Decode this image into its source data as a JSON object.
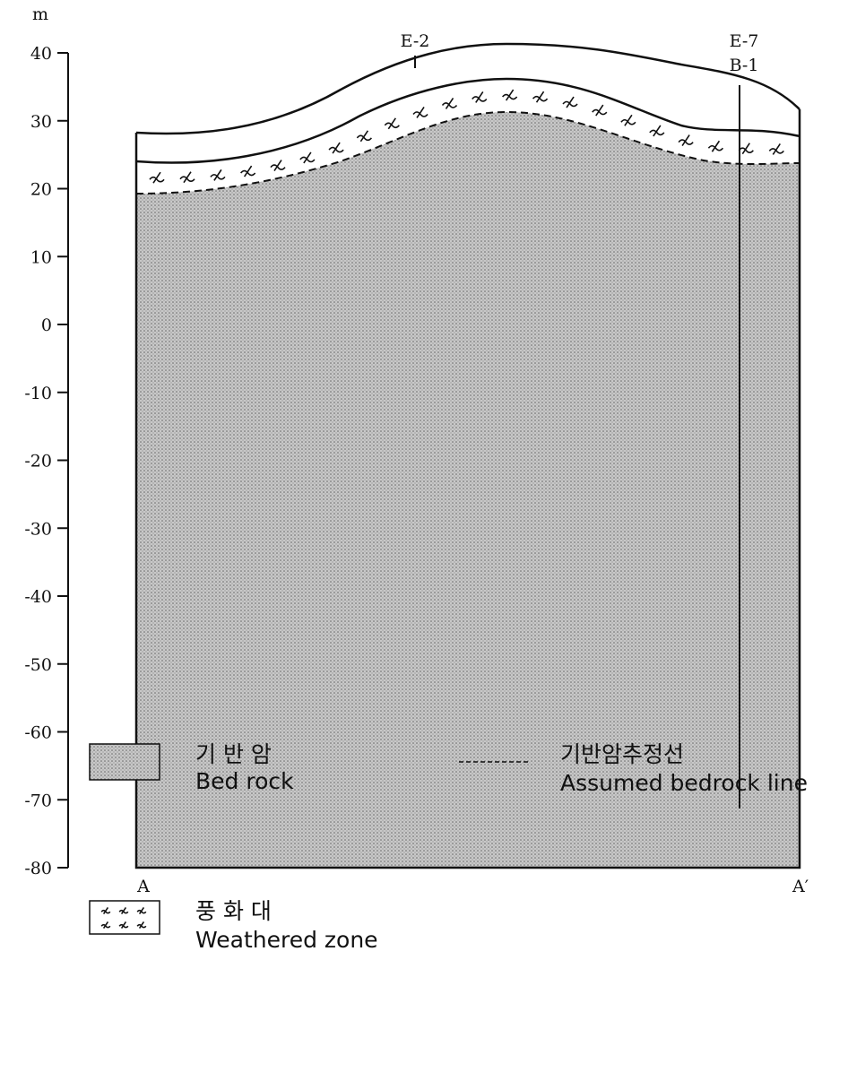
{
  "axis": {
    "unit": "m",
    "ticks": [
      40,
      30,
      20,
      10,
      0,
      -10,
      -20,
      -30,
      -40,
      -50,
      -60,
      -70,
      -80
    ]
  },
  "section": {
    "left_label": "A",
    "right_label": "A′",
    "boreholes": [
      {
        "label": "E-2"
      },
      {
        "label": "E-7"
      },
      {
        "label": "B-1"
      }
    ]
  },
  "legend": [
    {
      "label_ko": "기 반 암",
      "label_en": "Bed rock"
    },
    {
      "label_ko": "기반암추정선",
      "label_en": "Assumed bedrock line"
    },
    {
      "label_ko": "풍 화 대",
      "label_en": "Weathered zone"
    }
  ]
}
